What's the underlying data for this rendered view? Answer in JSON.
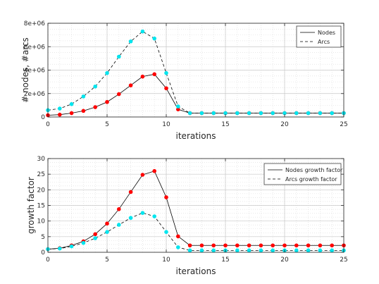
{
  "chart_data": [
    {
      "type": "line",
      "xlabel": "iterations",
      "ylabel": "# nodes, #arcs",
      "xlim": [
        0,
        25
      ],
      "ylim": [
        0,
        8000000
      ],
      "xticks": [
        0,
        5,
        10,
        15,
        20,
        25
      ],
      "xtick_labels": [
        "0",
        "5",
        "10",
        "15",
        "20",
        "25"
      ],
      "yticks": [
        0,
        2000000,
        4000000,
        6000000,
        8000000
      ],
      "ytick_labels": [
        "0",
        "2e+06",
        "4e+06",
        "6e+06",
        "8e+06"
      ],
      "grid": true,
      "legend_position": "top-right",
      "x": [
        0,
        1,
        2,
        3,
        4,
        5,
        6,
        7,
        8,
        9,
        10,
        11,
        12,
        13,
        14,
        15,
        16,
        17,
        18,
        19,
        20,
        21,
        22,
        23,
        24,
        25
      ],
      "series": [
        {
          "name": "Nodes",
          "line_style": "solid",
          "line_color": "#000000",
          "marker_color": "#ff0000",
          "values": [
            150000,
            200000,
            330000,
            520000,
            840000,
            1280000,
            1950000,
            2700000,
            3450000,
            3650000,
            2450000,
            650000,
            330000,
            330000,
            330000,
            330000,
            330000,
            330000,
            330000,
            330000,
            330000,
            330000,
            330000,
            330000,
            330000,
            330000
          ]
        },
        {
          "name": "Arcs",
          "line_style": "dashed",
          "line_color": "#000000",
          "marker_color": "#00e5ee",
          "values": [
            580000,
            720000,
            1100000,
            1750000,
            2600000,
            3750000,
            5150000,
            6450000,
            7300000,
            6700000,
            3750000,
            900000,
            330000,
            330000,
            330000,
            330000,
            330000,
            330000,
            330000,
            330000,
            330000,
            330000,
            330000,
            330000,
            330000,
            330000
          ]
        }
      ]
    },
    {
      "type": "line",
      "xlabel": "iterations",
      "ylabel": "growth factor",
      "xlim": [
        0,
        25
      ],
      "ylim": [
        0,
        30
      ],
      "xticks": [
        0,
        5,
        10,
        15,
        20,
        25
      ],
      "xtick_labels": [
        "0",
        "5",
        "10",
        "15",
        "20",
        "25"
      ],
      "yticks": [
        0,
        5,
        10,
        15,
        20,
        25,
        30
      ],
      "ytick_labels": [
        "0",
        "5",
        "10",
        "15",
        "20",
        "25",
        "30"
      ],
      "grid": true,
      "legend_position": "top-right",
      "x": [
        0,
        1,
        2,
        3,
        4,
        5,
        6,
        7,
        8,
        9,
        10,
        11,
        12,
        13,
        14,
        15,
        16,
        17,
        18,
        19,
        20,
        21,
        22,
        23,
        24,
        25
      ],
      "series": [
        {
          "name": "Nodes growth factor",
          "line_style": "solid",
          "line_color": "#000000",
          "marker_color": "#ff0000",
          "values": [
            1,
            1.3,
            2.2,
            3.5,
            5.8,
            9.2,
            13.8,
            19.3,
            24.8,
            26,
            17.6,
            5.1,
            2.2,
            2.2,
            2.2,
            2.2,
            2.2,
            2.2,
            2.2,
            2.2,
            2.2,
            2.2,
            2.2,
            2.2,
            2.2,
            2.2
          ]
        },
        {
          "name": "Arcs growth factor",
          "line_style": "dashed",
          "line_color": "#000000",
          "marker_color": "#00e5ee",
          "values": [
            1,
            1.2,
            1.9,
            3,
            4.5,
            6.5,
            8.8,
            11,
            12.6,
            11.5,
            6.5,
            1.6,
            0.6,
            0.6,
            0.6,
            0.6,
            0.6,
            0.6,
            0.6,
            0.6,
            0.6,
            0.6,
            0.6,
            0.6,
            0.6,
            0.6
          ]
        }
      ]
    }
  ]
}
